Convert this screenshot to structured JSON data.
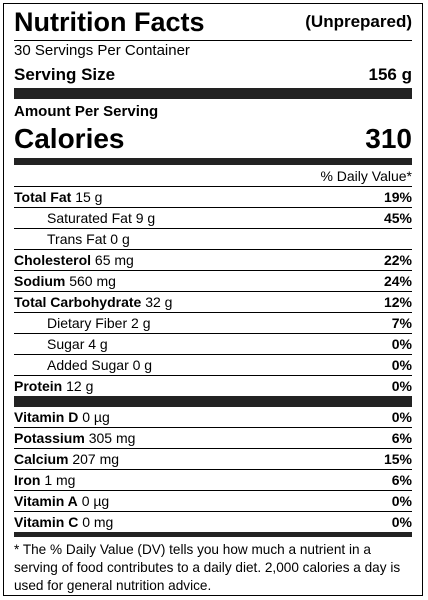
{
  "header": {
    "title": "Nutrition Facts",
    "note": "(Unprepared)",
    "servings": "30 Servings Per Container",
    "serving_size_label": "Serving Size",
    "serving_size": "156 g"
  },
  "amount_per_serving": "Amount Per Serving",
  "calories": {
    "label": "Calories",
    "value": "310"
  },
  "daily_value_header": "% Daily Value*",
  "nutrients": [
    {
      "name": "Total Fat",
      "amount": "15 g",
      "dv": "19%",
      "sub": [
        {
          "name": "Saturated Fat",
          "amount": "9 g",
          "dv": "45%"
        },
        {
          "name": "Trans Fat",
          "amount": "0 g"
        }
      ]
    },
    {
      "name": "Cholesterol",
      "amount": "65 mg",
      "dv": "22%"
    },
    {
      "name": "Sodium",
      "amount": "560 mg",
      "dv": "24%"
    },
    {
      "name": "Total Carbohydrate",
      "amount": "32 g",
      "dv": "12%",
      "sub": [
        {
          "name": "Dietary Fiber",
          "amount": "2 g",
          "dv": "7%"
        },
        {
          "name": "Sugar",
          "amount": "4 g",
          "dv": "0%"
        },
        {
          "name": "Added Sugar",
          "amount": "0 g",
          "dv": "0%"
        }
      ]
    },
    {
      "name": "Protein",
      "amount": "12 g",
      "dv": "0%"
    }
  ],
  "vitamins": [
    {
      "name": "Vitamin D",
      "amount": "0 µg",
      "dv": "0%"
    },
    {
      "name": "Potassium",
      "amount": "305 mg",
      "dv": "6%"
    },
    {
      "name": "Calcium",
      "amount": "207 mg",
      "dv": "15%"
    },
    {
      "name": "Iron",
      "amount": "1 mg",
      "dv": "6%"
    },
    {
      "name": "Vitamin A",
      "amount": "0 µg",
      "dv": "0%"
    },
    {
      "name": "Vitamin C",
      "amount": "0 mg",
      "dv": "0%"
    }
  ],
  "footnote": "* The % Daily Value (DV) tells you how much a nutrient in a serving of food contributes to a daily diet. 2,000 calories a day is used for general nutrition advice."
}
